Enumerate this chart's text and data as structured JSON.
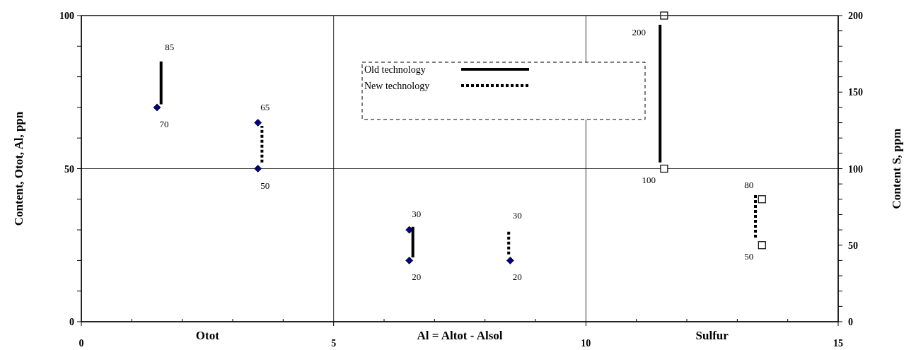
{
  "chart_data": {
    "type": "scatter",
    "ylabel": "Content, Otot,    Al, ppn",
    "y2label": "Content S, ppm",
    "xlim": [
      0,
      15
    ],
    "xticks": [
      0,
      {
        "value": 1,
        "label": null
      },
      {
        "value": 2,
        "label": null
      },
      {
        "value": 3,
        "label": null
      },
      {
        "value": 4,
        "label": null
      },
      5,
      {
        "value": 6,
        "label": null
      },
      {
        "value": 7,
        "label": null
      },
      {
        "value": 8,
        "label": null
      },
      {
        "value": 9,
        "label": null
      },
      10,
      {
        "value": 11,
        "label": null
      },
      {
        "value": 12,
        "label": null
      },
      {
        "value": 13,
        "label": null
      },
      {
        "value": 14,
        "label": null
      },
      15
    ],
    "ylim": [
      0,
      100
    ],
    "yticks": [
      0,
      {
        "value": 10,
        "label": null
      },
      {
        "value": 20,
        "label": null
      },
      {
        "value": 30,
        "label": null
      },
      {
        "value": 40,
        "label": null
      },
      50,
      {
        "value": 60,
        "label": null
      },
      {
        "value": 70,
        "label": null
      },
      {
        "value": 80,
        "label": null
      },
      {
        "value": 90,
        "label": null
      },
      100
    ],
    "y2lim": [
      0,
      200
    ],
    "y2ticks": [
      0,
      {
        "value": 10,
        "label": null
      },
      {
        "value": 20,
        "label": null
      },
      {
        "value": 30,
        "label": null
      },
      {
        "value": 40,
        "label": null
      },
      50,
      {
        "value": 60,
        "label": null
      },
      {
        "value": 70,
        "label": null
      },
      {
        "value": 80,
        "label": null
      },
      {
        "value": 90,
        "label": null
      },
      100,
      {
        "value": 110,
        "label": null
      },
      {
        "value": 120,
        "label": null
      },
      {
        "value": 130,
        "label": null
      },
      {
        "value": 140,
        "label": null
      },
      150,
      {
        "value": 160,
        "label": null
      },
      {
        "value": 170,
        "label": null
      },
      {
        "value": 180,
        "label": null
      },
      {
        "value": 190,
        "label": null
      },
      200
    ],
    "grid": true,
    "legend": "top",
    "annotations": [
      "Otot",
      "Al = Altot - Alsol",
      "Sulfur"
    ],
    "series": [
      {
        "type": "line",
        "name": "Old technology",
        "color": "#000000",
        "line_style": "solid",
        "x": [
          1.58,
          1.58
        ],
        "values": [
          71,
          85
        ],
        "value_labels": [
          null,
          "85"
        ]
      },
      {
        "type": "line",
        "name": "New technology",
        "color": "#000000",
        "line_style": "dotted",
        "x": [
          3.58,
          3.58
        ],
        "values": [
          52,
          64
        ]
      },
      {
        "type": "line",
        "color": "#000000",
        "line_style": "solid",
        "x": [
          6.57,
          6.57
        ],
        "values": [
          21,
          31
        ]
      },
      {
        "type": "line",
        "color": "#000000",
        "line_style": "dotted",
        "x": [
          8.47,
          8.47
        ],
        "values": [
          22,
          30
        ],
        "value_labels": [
          null,
          "30"
        ]
      },
      {
        "type": "line",
        "axis": "y2",
        "color": "#000000",
        "line_style": "solid",
        "x": [
          11.47,
          11.47
        ],
        "values": [
          104,
          194
        ]
      },
      {
        "type": "line",
        "axis": "y2",
        "color": "#000000",
        "line_style": "dotted",
        "x": [
          13.36,
          13.36
        ],
        "values": [
          55,
          83
        ]
      },
      {
        "marker": "diamond",
        "color": "#000080",
        "x": [
          1.5,
          3.5,
          3.5,
          6.5,
          6.5,
          8.5
        ],
        "values": [
          70,
          65,
          50,
          30,
          20,
          20
        ],
        "value_labels": [
          "70",
          "65",
          "50",
          "30",
          "20",
          "20"
        ]
      },
      {
        "axis": "y2",
        "marker": "square",
        "color": "#000000",
        "x": [
          11.55,
          11.55,
          13.49,
          13.49
        ],
        "values": [
          200,
          100,
          80,
          50
        ],
        "value_labels": [
          "200",
          "100",
          "80",
          "50"
        ]
      }
    ]
  }
}
